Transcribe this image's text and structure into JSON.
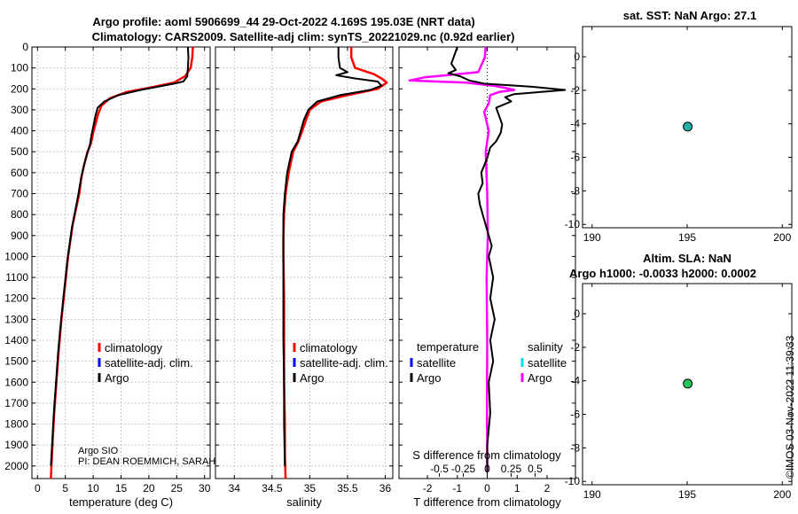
{
  "header": {
    "title_line1": "Argo profile: aoml 5906699_44 29-Oct-2022 4.169S 195.03E (NRT data)",
    "title_line2": "Climatology: CARS2009. Satellite-adj clim: synTS_20221029.nc (0.92d earlier)"
  },
  "side": {
    "stamp": "©IMOS 03-Nov-2022 11:39:33"
  },
  "chart_data": [
    {
      "id": "temperature",
      "type": "line",
      "xlabel": "temperature (deg C)",
      "xlim": [
        -1,
        31
      ],
      "ylim": [
        2060,
        0
      ],
      "xticks": [
        "0",
        "5",
        "10",
        "15",
        "20",
        "25",
        "30"
      ],
      "xtick_values": [
        0,
        5,
        10,
        15,
        20,
        25,
        30
      ],
      "yticks": [
        "0",
        "100",
        "200",
        "300",
        "400",
        "500",
        "600",
        "700",
        "800",
        "900",
        "1000",
        "1100",
        "1200",
        "1300",
        "1400",
        "1500",
        "1600",
        "1700",
        "1800",
        "1900",
        "2000"
      ],
      "ytick_values": [
        0,
        100,
        200,
        300,
        400,
        500,
        600,
        700,
        800,
        900,
        1000,
        1100,
        1200,
        1300,
        1400,
        1500,
        1600,
        1700,
        1800,
        1900,
        2000
      ],
      "grid": true,
      "legend": [
        "climatology",
        "satellite-adj. clim.",
        "Argo"
      ],
      "legend_colors": [
        "#ff0000",
        "#0000ff",
        "#000000"
      ],
      "notes": [
        "Argo SIO",
        "PI: DEAN ROEMMICH, SARAH"
      ],
      "series": [
        {
          "name": "climatology",
          "color": "#ff0000",
          "width": 2.5,
          "x": [
            27.9,
            27.8,
            27.5,
            26.5,
            24.5,
            21.0,
            16.0,
            13.0,
            11.5,
            10.9,
            10.5,
            10.0,
            9.6,
            9.0,
            8.4,
            7.9,
            7.5,
            6.3,
            5.5,
            4.9,
            4.3,
            3.8,
            3.4,
            3.0,
            2.7,
            2.5,
            2.4
          ],
          "y": [
            0,
            50,
            100,
            140,
            170,
            190,
            215,
            245,
            280,
            320,
            360,
            410,
            460,
            500,
            560,
            620,
            700,
            850,
            1000,
            1150,
            1300,
            1450,
            1600,
            1750,
            1900,
            2000,
            2060
          ]
        },
        {
          "name": "Argo",
          "color": "#000000",
          "width": 2,
          "x": [
            27.0,
            27.1,
            27.0,
            26.9,
            26.2,
            24.5,
            22.0,
            18.5,
            14.5,
            12.0,
            10.8,
            10.4,
            10.1,
            9.7,
            9.4,
            8.9,
            8.3,
            7.8,
            7.3,
            6.2,
            5.4,
            4.8,
            4.2,
            3.7,
            3.3,
            2.9,
            2.6,
            2.4
          ],
          "y": [
            0,
            50,
            100,
            140,
            165,
            175,
            188,
            205,
            230,
            260,
            290,
            330,
            370,
            420,
            470,
            510,
            570,
            630,
            710,
            860,
            1010,
            1160,
            1310,
            1460,
            1610,
            1760,
            1910,
            2000
          ]
        }
      ]
    },
    {
      "id": "salinity",
      "type": "line",
      "xlabel": "salinity",
      "xlim": [
        33.75,
        36.1
      ],
      "ylim": [
        2060,
        0
      ],
      "xticks": [
        "34",
        "34.5",
        "35",
        "35.5",
        "36"
      ],
      "xtick_values": [
        34,
        34.5,
        35,
        35.5,
        36
      ],
      "grid": true,
      "legend": [
        "climatology",
        "satellite-adj. clim.",
        "Argo"
      ],
      "legend_colors": [
        "#ff0000",
        "#0000ff",
        "#000000"
      ],
      "series": [
        {
          "name": "climatology",
          "color": "#ff0000",
          "width": 2.5,
          "x": [
            35.55,
            35.55,
            35.6,
            35.85,
            35.95,
            36.02,
            35.9,
            35.5,
            35.15,
            35.0,
            34.95,
            34.9,
            34.85,
            34.78,
            34.72,
            34.68,
            34.66,
            34.65,
            34.65,
            34.66,
            34.66,
            34.66,
            34.67,
            34.67,
            34.68
          ],
          "y": [
            0,
            50,
            100,
            130,
            150,
            170,
            200,
            230,
            260,
            300,
            350,
            400,
            450,
            500,
            600,
            700,
            800,
            900,
            1000,
            1200,
            1400,
            1600,
            1800,
            1950,
            2060
          ]
        },
        {
          "name": "Argo",
          "color": "#000000",
          "width": 2,
          "x": [
            35.38,
            35.38,
            35.4,
            35.5,
            35.35,
            35.6,
            35.9,
            35.95,
            35.8,
            35.4,
            35.1,
            34.98,
            34.92,
            34.88,
            34.84,
            34.76,
            34.7,
            34.67,
            34.65,
            34.65,
            34.65,
            34.65,
            34.66,
            34.66,
            34.67
          ],
          "y": [
            0,
            50,
            100,
            120,
            135,
            150,
            165,
            185,
            205,
            230,
            260,
            300,
            350,
            400,
            450,
            500,
            600,
            700,
            800,
            1000,
            1200,
            1400,
            1600,
            1800,
            2000
          ]
        }
      ]
    },
    {
      "id": "difference",
      "type": "line",
      "xlabel": "T difference from climatology",
      "top_label": "S difference from climatology",
      "xlim": [
        -2.95,
        2.95
      ],
      "ylim": [
        2060,
        0
      ],
      "xticks": [
        "-2",
        "-1",
        "0",
        "1",
        "2"
      ],
      "xtick_values": [
        -2,
        -1,
        0,
        1,
        2
      ],
      "sticks": [
        "-0.5",
        "-0.25",
        "0",
        "0.25",
        "0.5"
      ],
      "stick_values": [
        -1.6,
        -0.8,
        0,
        0.8,
        1.6
      ],
      "grid": false,
      "zero_line": true,
      "legend_left_title": "temperature",
      "legend_right_title": "salinity",
      "legend_left": [
        "satellite",
        "Argo"
      ],
      "legend_left_colors": [
        "#0000ff",
        "#000000"
      ],
      "legend_right": [
        "satellite",
        "Argo"
      ],
      "legend_right_colors": [
        "#00e0e0",
        "#ff00ff"
      ],
      "series": [
        {
          "name": "S Argo",
          "color": "#ff00ff",
          "width": 2.5,
          "x": [
            -0.05,
            -0.08,
            -0.3,
            -2.1,
            -2.6,
            -0.7,
            0.2,
            0.6,
            0.9,
            0.4,
            0.1,
            0.05,
            -0.1,
            0.05,
            -0.05,
            0.0,
            0.02,
            -0.02,
            0.0,
            -0.01,
            0.0,
            0.0
          ],
          "y": [
            0,
            50,
            120,
            145,
            160,
            170,
            185,
            195,
            205,
            215,
            230,
            270,
            310,
            400,
            500,
            700,
            900,
            1100,
            1400,
            1700,
            1900,
            2030
          ]
        },
        {
          "name": "T Argo",
          "color": "#000000",
          "width": 2,
          "x": [
            -1.0,
            -1.2,
            -1.05,
            -1.3,
            -0.9,
            -0.6,
            -0.1,
            1.5,
            2.6,
            1.8,
            0.9,
            0.6,
            0.8,
            0.3,
            0.4,
            0.5,
            0.45,
            0.3,
            0.1,
            0.0,
            -0.2,
            -0.15,
            -0.3,
            -0.25,
            -0.15,
            -0.05,
            0.05,
            0.15,
            0.05,
            0.2,
            0.1,
            0.25,
            0.1,
            0.2,
            0.05,
            0.1,
            0.0,
            0.0
          ],
          "y": [
            0,
            80,
            110,
            125,
            140,
            160,
            175,
            190,
            205,
            215,
            225,
            240,
            260,
            290,
            330,
            370,
            410,
            450,
            480,
            530,
            600,
            650,
            700,
            750,
            800,
            850,
            900,
            950,
            1000,
            1100,
            1200,
            1300,
            1400,
            1500,
            1600,
            1750,
            1900,
            2030
          ]
        }
      ]
    },
    {
      "id": "sst",
      "type": "scatter",
      "title": "sat. SST: NaN Argo: 27.1",
      "xlim": [
        189.5,
        200.5
      ],
      "ylim": [
        -10.2,
        1.8
      ],
      "xticks": [
        "190",
        "195",
        "200"
      ],
      "xtick_values": [
        190,
        195,
        200
      ],
      "yticks": [
        "0",
        "-2",
        "-4",
        "-6",
        "-8",
        "-10"
      ],
      "ytick_values": [
        0,
        -2,
        -4,
        -6,
        -8,
        -10
      ],
      "points": [
        {
          "x": 195.03,
          "y": -4.169,
          "color": "#20b2aa"
        }
      ]
    },
    {
      "id": "sla",
      "type": "scatter",
      "title": "Altim. SLA: NaN",
      "title2": "Argo h1000: -0.0033 h2000: 0.0002",
      "xlim": [
        189.5,
        200.5
      ],
      "ylim": [
        -10.2,
        1.8
      ],
      "xticks": [
        "190",
        "195",
        "200"
      ],
      "xtick_values": [
        190,
        195,
        200
      ],
      "yticks": [
        "0",
        "-2",
        "-4",
        "-6",
        "-8",
        "-10"
      ],
      "ytick_values": [
        0,
        -2,
        -4,
        -6,
        -8,
        -10
      ],
      "points": [
        {
          "x": 195.03,
          "y": -4.169,
          "color": "#22c55e"
        }
      ]
    }
  ]
}
